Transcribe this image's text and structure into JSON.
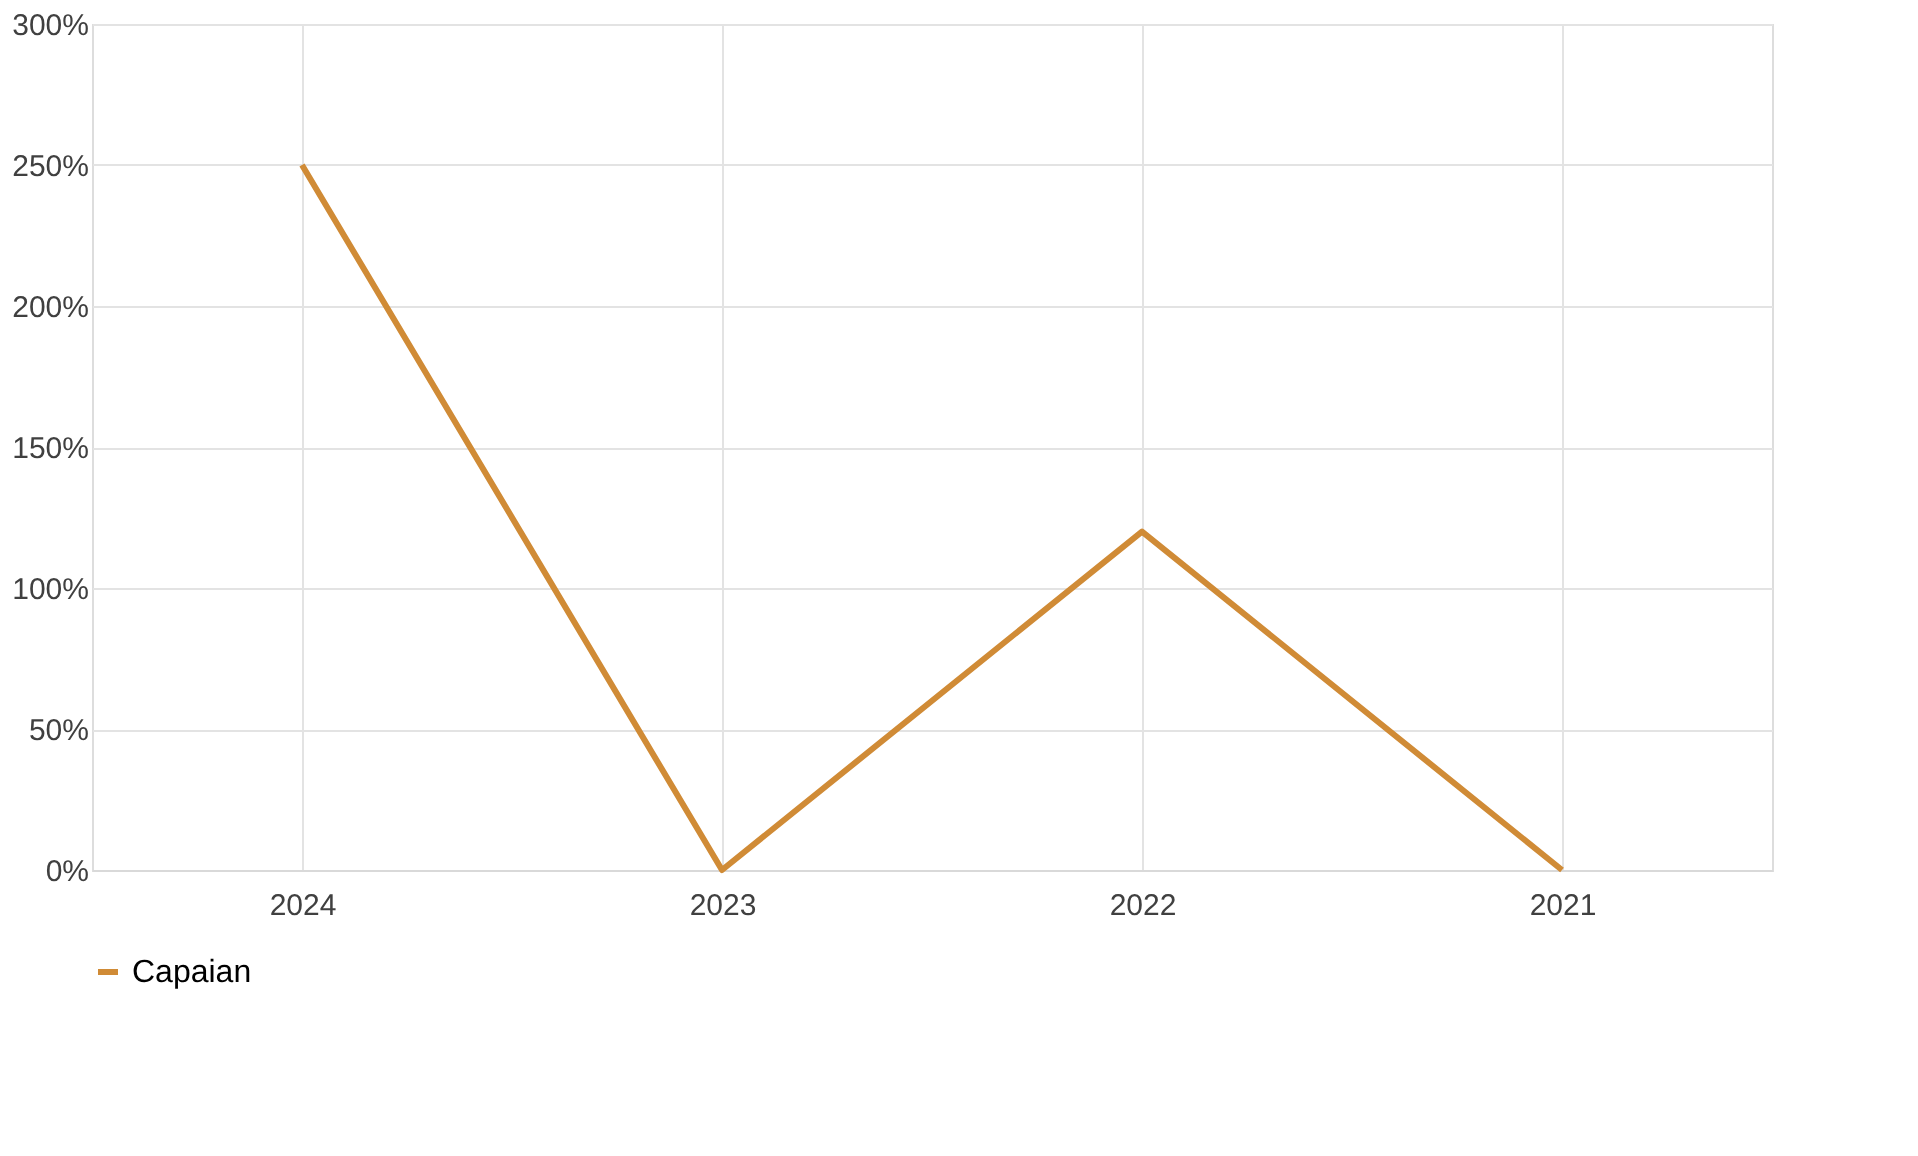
{
  "chart_data": {
    "type": "line",
    "categories": [
      "2024",
      "2023",
      "2022",
      "2021"
    ],
    "series": [
      {
        "name": "Capaian",
        "color": "#d08b36",
        "values": [
          250,
          0,
          120,
          0
        ]
      }
    ],
    "ylim": [
      0,
      300
    ],
    "yticks": [
      {
        "value": 0,
        "label": "0%"
      },
      {
        "value": 50,
        "label": "50%"
      },
      {
        "value": 100,
        "label": "100%"
      },
      {
        "value": 150,
        "label": "150%"
      },
      {
        "value": 200,
        "label": "200%"
      },
      {
        "value": 250,
        "label": "250%"
      },
      {
        "value": 300,
        "label": "300%"
      }
    ],
    "grid": true,
    "legend": "bottom",
    "marker": "none",
    "line_style": "solid"
  }
}
